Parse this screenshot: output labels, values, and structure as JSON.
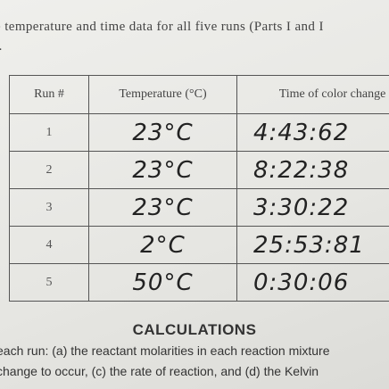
{
  "intro": {
    "lines": [
      "e temperature and time data for all five runs (Parts I and I",
      "t."
    ]
  },
  "table": {
    "header": [
      "Run #",
      "Temperature (°C)",
      "Time of color change"
    ],
    "rows": [
      [
        "1",
        "23°C",
        "4:43:62"
      ],
      [
        "2",
        "23°C",
        "8:22:38"
      ],
      [
        "3",
        "23°C",
        "3:30:22"
      ],
      [
        "4",
        "2°C",
        "25:53:81"
      ],
      [
        "5",
        "50°C",
        "0:30:06"
      ]
    ]
  },
  "calculations": {
    "title": "CALCULATIONS",
    "lines": [
      "each run: (a) the reactant molarities in each reaction mixture",
      "change to occur, (c) the rate of reaction, and (d) the Kelvin"
    ]
  }
}
